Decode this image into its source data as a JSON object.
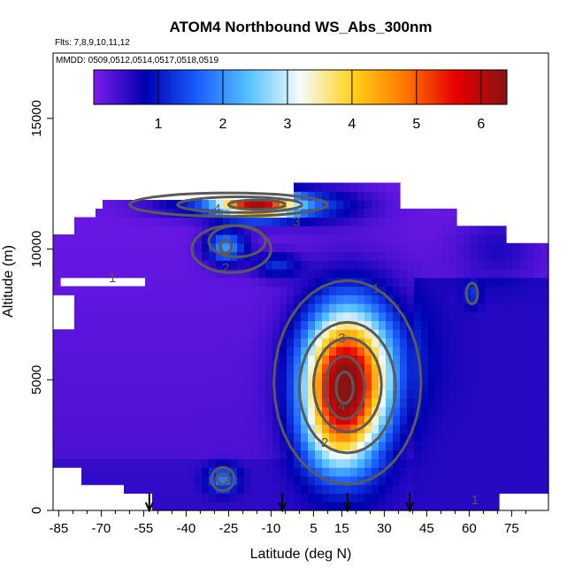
{
  "chart_data": {
    "type": "heatmap",
    "title": "ATOM4 Northbound WS_Abs_300nm",
    "flights_note": "Flts: 7,8,9,10,11,12",
    "dates_note": "MMDD: 0509,0512,0514,0517,0518,0519",
    "xlabel": "Latitude (deg N)",
    "ylabel": "Altitude (m)",
    "xlim": [
      -87,
      88
    ],
    "ylim": [
      0,
      17500
    ],
    "x_ticks": [
      "-85",
      "-70",
      "-55",
      "-40",
      "-25",
      "-10",
      "5",
      "15",
      "30",
      "45",
      "60",
      "75"
    ],
    "x_tick_values": [
      -85,
      -70,
      -55,
      -40,
      -25,
      -10,
      5,
      15,
      30,
      45,
      60,
      75
    ],
    "y_ticks": [
      "0",
      "5000",
      "10000",
      "15000"
    ],
    "y_tick_values": [
      0,
      5000,
      10000,
      15000
    ],
    "colorbar": {
      "range": [
        0,
        6.4
      ],
      "tick_labels": [
        "1",
        "2",
        "3",
        "4",
        "5",
        "6"
      ],
      "tick_values": [
        1,
        2,
        3,
        4,
        5,
        6
      ],
      "colors": [
        "#7c1cec",
        "#0000b0",
        "#1a5cff",
        "#56c2ff",
        "#f4fbff",
        "#ffd21a",
        "#ff7a00",
        "#e60000",
        "#8a1212"
      ]
    },
    "hotspots": [
      {
        "name": "upper-jet-max",
        "lat": -15,
        "alt": 11700,
        "value": 6.2
      },
      {
        "name": "upper-left-blob",
        "lat": -26,
        "alt": 10100,
        "value": 2.6
      },
      {
        "name": "mid-core",
        "lat": 16,
        "alt": 4700,
        "value": 6.0
      },
      {
        "name": "low-blob",
        "lat": -27,
        "alt": 1200,
        "value": 1.8
      }
    ],
    "contour_labels": [
      {
        "text": "4",
        "lat": -29,
        "alt": 11550
      },
      {
        "text": "3",
        "lat": -1,
        "alt": 11050
      },
      {
        "text": "2",
        "lat": -26,
        "alt": 9300
      },
      {
        "text": "1",
        "lat": -66,
        "alt": 8900
      },
      {
        "text": "1",
        "lat": 27,
        "alt": 8500
      },
      {
        "text": "3",
        "lat": 15,
        "alt": 6600
      },
      {
        "text": "4",
        "lat": 15,
        "alt": 4000
      },
      {
        "text": "2",
        "lat": 9,
        "alt": 2600
      },
      {
        "text": "1",
        "lat": 62,
        "alt": 400
      }
    ],
    "profile_markers_lat": [
      -53,
      -6,
      17,
      39
    ]
  }
}
